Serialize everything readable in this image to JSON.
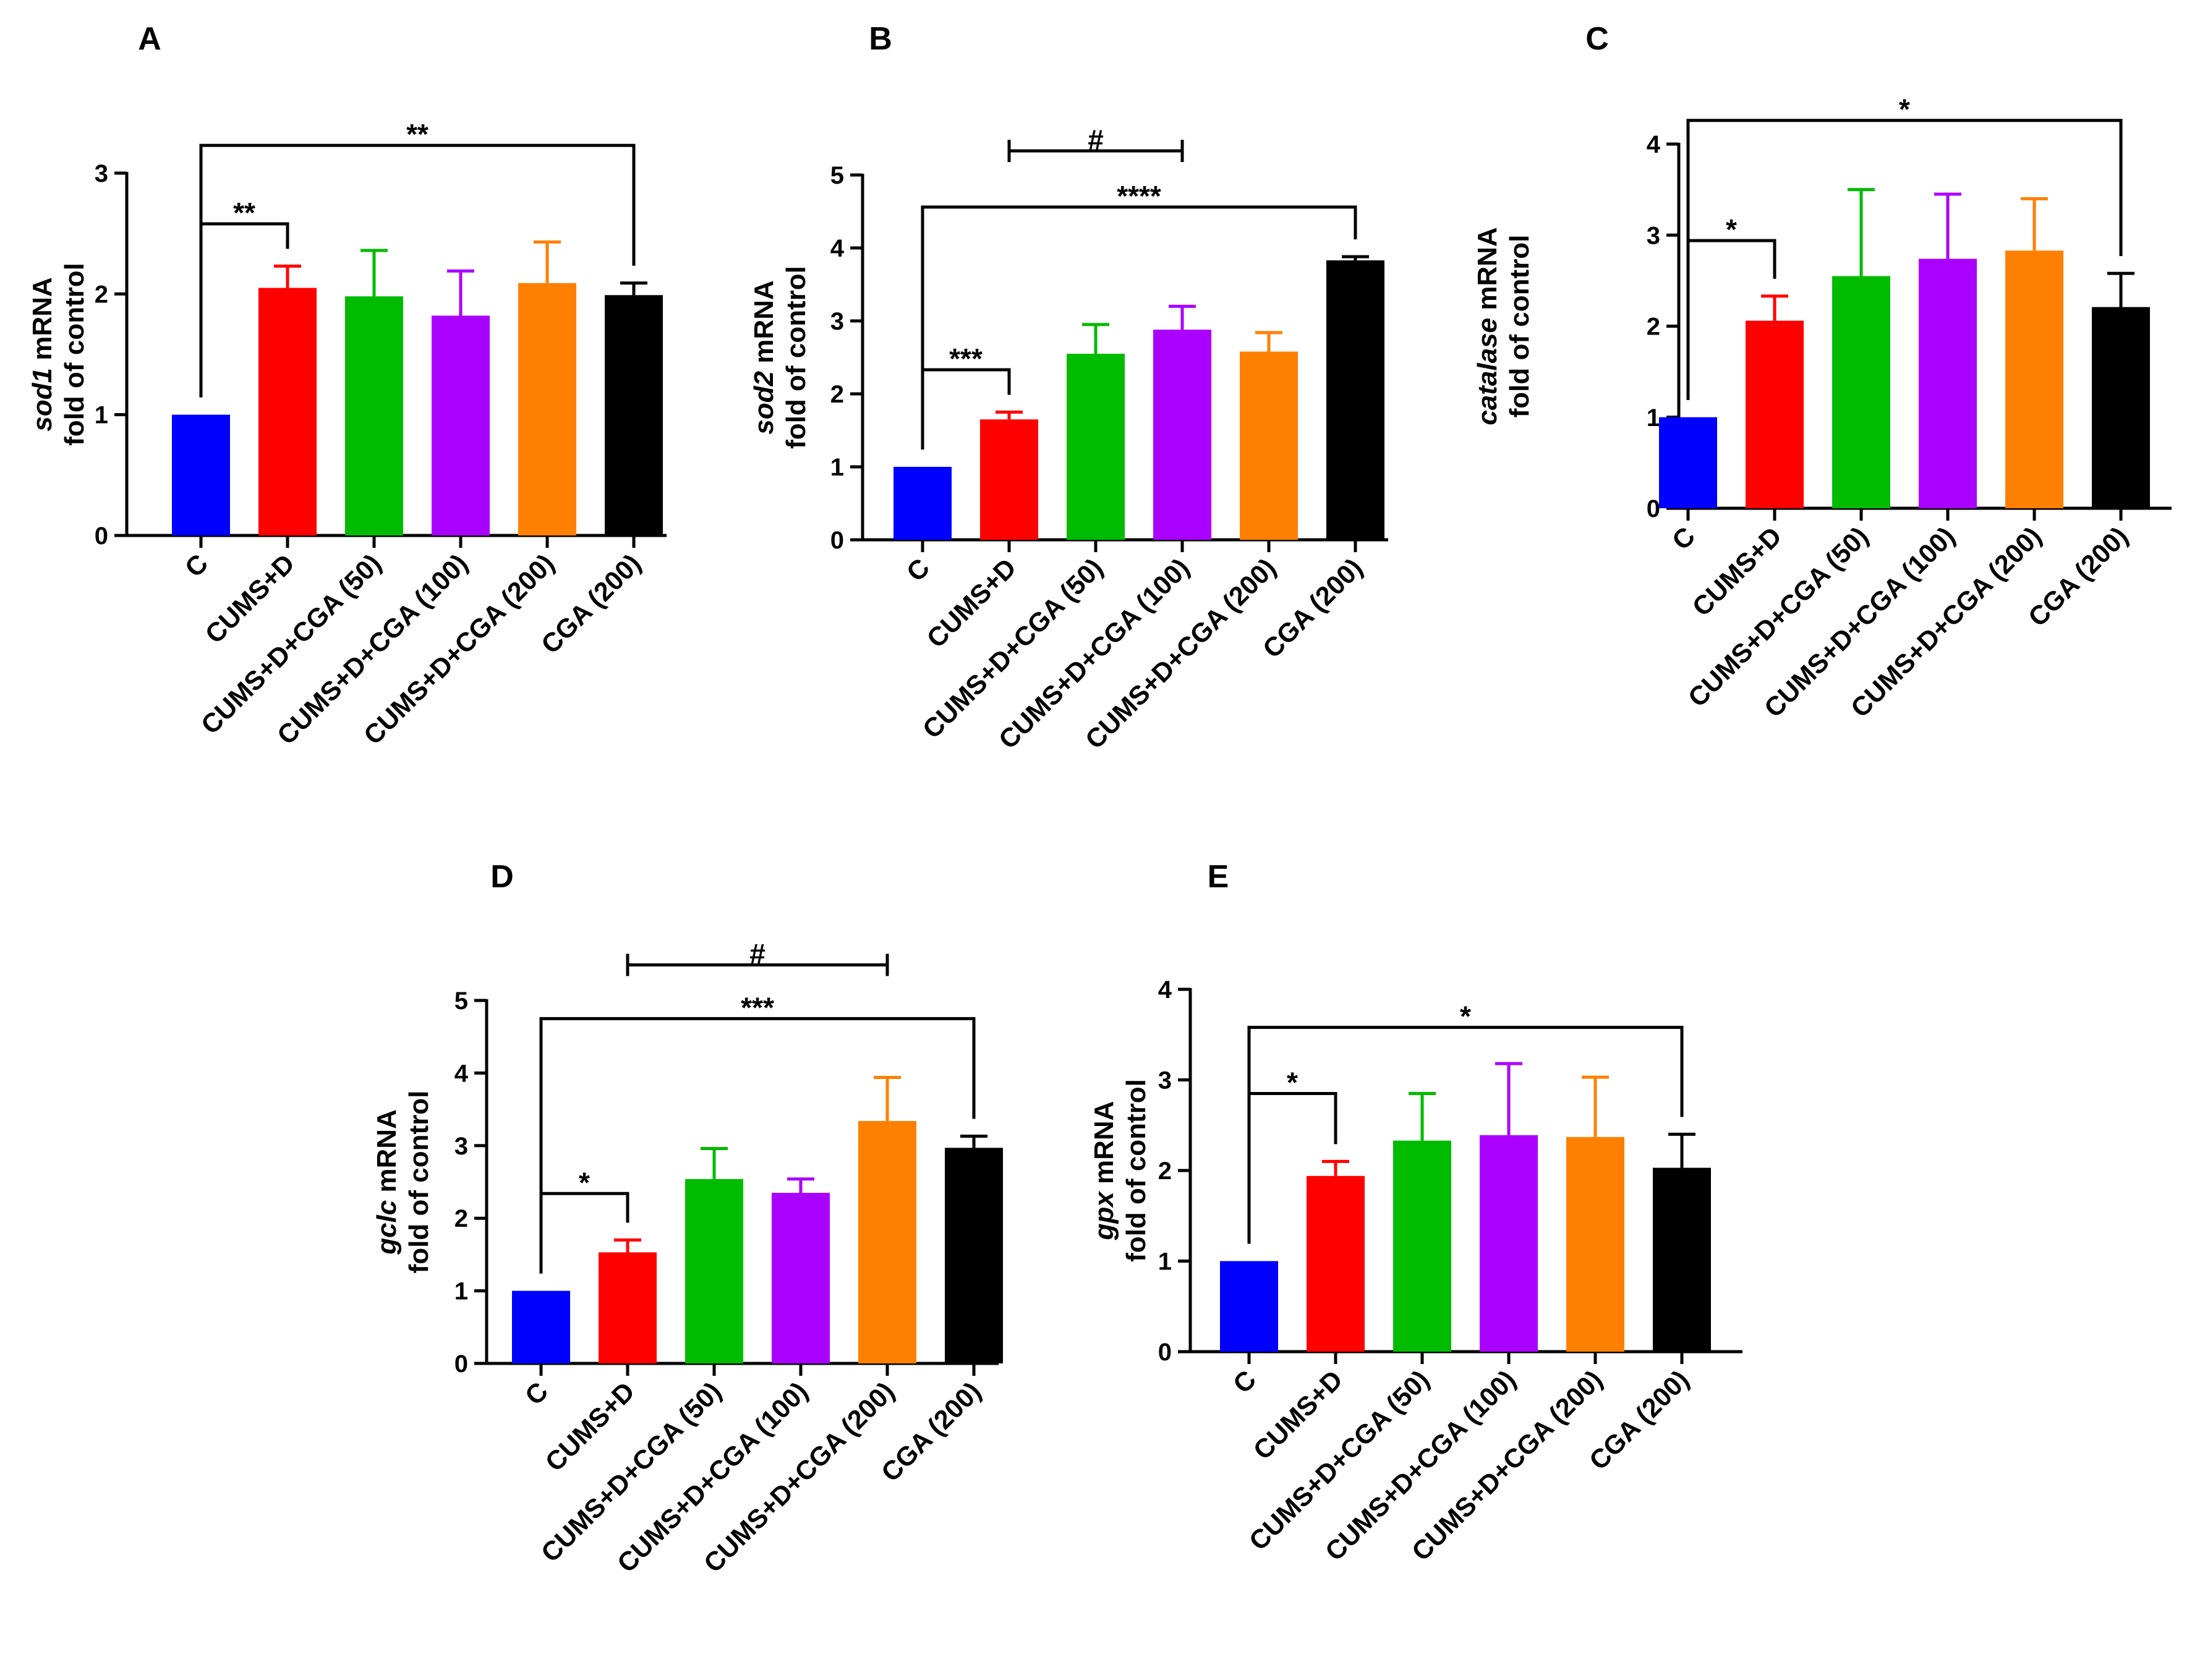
{
  "colors": {
    "bars": [
      "#0000ff",
      "#ff0000",
      "#00bb00",
      "#aa00ff",
      "#ff8000",
      "#000000"
    ],
    "axis": "#000000",
    "background": "#ffffff"
  },
  "chart_data": [
    {
      "type": "bar",
      "panel": "A",
      "title": "",
      "ylabel_italic": "sod1",
      "ylabel_rest": " mRNA",
      "ylabel_line2": "fold of control",
      "categories": [
        "C",
        "CUMS+D",
        "CUMS+D+CGA (50)",
        "CUMS+D+CGA (100)",
        "CUMS+D+CGA (200)",
        "CGA (200)"
      ],
      "values": [
        1.0,
        2.05,
        1.98,
        1.82,
        2.09,
        1.99
      ],
      "errors": [
        0,
        0.18,
        0.38,
        0.37,
        0.34,
        0.1
      ],
      "ylim": [
        0,
        3
      ],
      "yticks": [
        0,
        1,
        2,
        3
      ],
      "significance": [
        {
          "from": 0,
          "to": 1,
          "label": "**",
          "level": 2.58
        },
        {
          "from": 0,
          "to": 5,
          "label": "**",
          "level": 3.23
        }
      ]
    },
    {
      "type": "bar",
      "panel": "B",
      "title": "",
      "ylabel_italic": "sod2",
      "ylabel_rest": " mRNA",
      "ylabel_line2": "fold of control",
      "categories": [
        "C",
        "CUMS+D",
        "CUMS+D+CGA (50)",
        "CUMS+D+CGA (100)",
        "CUMS+D+CGA (200)",
        "CGA (200)"
      ],
      "values": [
        1.0,
        1.65,
        2.55,
        2.88,
        2.58,
        3.83
      ],
      "errors": [
        0,
        0.1,
        0.4,
        0.32,
        0.26,
        0.05
      ],
      "ylim": [
        0,
        5
      ],
      "yticks": [
        0,
        1,
        2,
        3,
        4,
        5
      ],
      "significance": [
        {
          "from": 0,
          "to": 1,
          "label": "***",
          "level": 2.33
        },
        {
          "from": 0,
          "to": 5,
          "label": "****",
          "level": 4.56
        },
        {
          "from": 1,
          "to": 3,
          "label": "#",
          "level": 5.33,
          "style": "tbar"
        }
      ]
    },
    {
      "type": "bar",
      "panel": "C",
      "title": "",
      "ylabel_italic": "catalase",
      "ylabel_rest": " mRNA",
      "ylabel_line2": "fold of control",
      "categories": [
        "C",
        "CUMS+D",
        "CUMS+D+CGA (50)",
        "CUMS+D+CGA (100)",
        "CUMS+D+CGA (200)",
        "CGA (200)"
      ],
      "values": [
        1.0,
        2.06,
        2.55,
        2.74,
        2.83,
        2.21
      ],
      "errors": [
        0,
        0.27,
        0.95,
        0.71,
        0.57,
        0.37
      ],
      "ylim": [
        0,
        4
      ],
      "yticks": [
        0,
        1,
        2,
        3,
        4
      ],
      "significance": [
        {
          "from": 0,
          "to": 1,
          "label": "*",
          "level": 2.94
        },
        {
          "from": 0,
          "to": 5,
          "label": "*",
          "level": 4.26
        }
      ]
    },
    {
      "type": "bar",
      "panel": "D",
      "title": "",
      "ylabel_italic": "gclc",
      "ylabel_rest": " mRNA",
      "ylabel_line2": "fold of control",
      "categories": [
        "C",
        "CUMS+D",
        "CUMS+D+CGA (50)",
        "CUMS+D+CGA (100)",
        "CUMS+D+CGA (200)",
        "CGA (200)"
      ],
      "values": [
        1.0,
        1.53,
        2.54,
        2.35,
        3.34,
        2.97
      ],
      "errors": [
        0,
        0.17,
        0.42,
        0.19,
        0.6,
        0.16
      ],
      "ylim": [
        0,
        5
      ],
      "yticks": [
        0,
        1,
        2,
        3,
        4,
        5
      ],
      "significance": [
        {
          "from": 0,
          "to": 1,
          "label": "*",
          "level": 2.34
        },
        {
          "from": 0,
          "to": 5,
          "label": "***",
          "level": 4.75
        },
        {
          "from": 1,
          "to": 4,
          "label": "#",
          "level": 5.49,
          "style": "tbar"
        }
      ]
    },
    {
      "type": "bar",
      "panel": "E",
      "title": "",
      "ylabel_italic": "gpx",
      "ylabel_rest": " mRNA",
      "ylabel_line2": "fold of control",
      "categories": [
        "C",
        "CUMS+D",
        "CUMS+D+CGA (50)",
        "CUMS+D+CGA (100)",
        "CUMS+D+CGA (200)",
        "CGA (200)"
      ],
      "values": [
        1.0,
        1.94,
        2.33,
        2.39,
        2.37,
        2.03
      ],
      "errors": [
        0,
        0.16,
        0.52,
        0.79,
        0.66,
        0.37
      ],
      "ylim": [
        0,
        4
      ],
      "yticks": [
        0,
        1,
        2,
        3,
        4
      ],
      "significance": [
        {
          "from": 0,
          "to": 1,
          "label": "*",
          "level": 2.85
        },
        {
          "from": 0,
          "to": 5,
          "label": "*",
          "level": 3.58
        }
      ]
    }
  ]
}
